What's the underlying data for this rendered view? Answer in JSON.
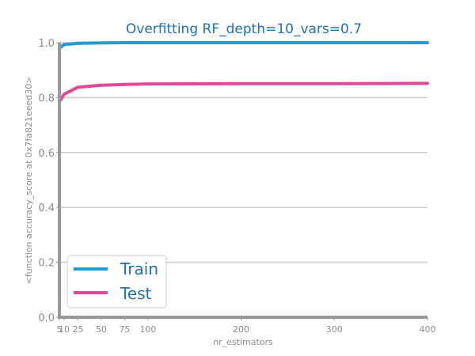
{
  "chart_data": {
    "type": "line",
    "title": "Overfitting RF_depth=10_vars=0.7",
    "xlabel": "nr_estimators",
    "ylabel": "<function accuracy_score at 0x7fa821eeed30>",
    "x_ticks": [
      5,
      10,
      25,
      50,
      75,
      100,
      200,
      300,
      400
    ],
    "y_ticks": [
      0.0,
      0.2,
      0.4,
      0.6,
      0.8,
      1.0
    ],
    "xlim": [
      5,
      400
    ],
    "ylim": [
      0.0,
      1.0
    ],
    "grid": "horizontal",
    "legend_position": "bottom-left",
    "x": [
      5,
      10,
      25,
      50,
      75,
      100,
      200,
      300,
      400
    ],
    "series": [
      {
        "name": "Train",
        "color": "#1f9bd7",
        "values": [
          0.98,
          0.993,
          0.998,
          0.999,
          1.0,
          1.0,
          1.0,
          1.0,
          1.0
        ]
      },
      {
        "name": "Test",
        "color": "#e0489a",
        "values": [
          0.785,
          0.812,
          0.838,
          0.845,
          0.848,
          0.85,
          0.851,
          0.851,
          0.852
        ]
      }
    ]
  }
}
